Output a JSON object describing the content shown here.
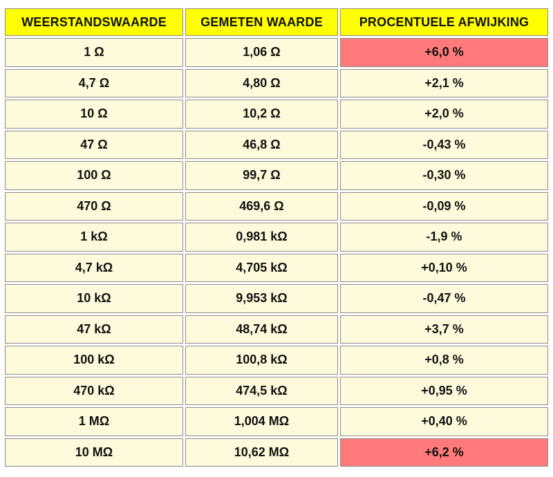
{
  "table": {
    "headers": [
      "WEERSTANDSWAARDE",
      "GEMETEN WAARDE",
      "PROCENTUELE AFWIJKING"
    ],
    "highlight_color": "#ff7a78",
    "header_color": "#ffff00",
    "cell_color": "#fffadc",
    "rows": [
      {
        "nominal": "1 Ω",
        "measured": "1,06 Ω",
        "deviation": "+6,0 %",
        "highlight": true
      },
      {
        "nominal": "4,7 Ω",
        "measured": "4,80 Ω",
        "deviation": "+2,1 %",
        "highlight": false
      },
      {
        "nominal": "10 Ω",
        "measured": "10,2 Ω",
        "deviation": "+2,0 %",
        "highlight": false
      },
      {
        "nominal": "47 Ω",
        "measured": "46,8 Ω",
        "deviation": "-0,43 %",
        "highlight": false
      },
      {
        "nominal": "100 Ω",
        "measured": "99,7 Ω",
        "deviation": "-0,30 %",
        "highlight": false
      },
      {
        "nominal": "470 Ω",
        "measured": "469,6 Ω",
        "deviation": "-0,09 %",
        "highlight": false
      },
      {
        "nominal": "1 kΩ",
        "measured": "0,981 kΩ",
        "deviation": "-1,9 %",
        "highlight": false
      },
      {
        "nominal": "4,7 kΩ",
        "measured": "4,705 kΩ",
        "deviation": "+0,10 %",
        "highlight": false
      },
      {
        "nominal": "10 kΩ",
        "measured": "9,953 kΩ",
        "deviation": "-0,47 %",
        "highlight": false
      },
      {
        "nominal": "47 kΩ",
        "measured": "48,74 kΩ",
        "deviation": "+3,7 %",
        "highlight": false
      },
      {
        "nominal": "100 kΩ",
        "measured": "100,8 kΩ",
        "deviation": "+0,8 %",
        "highlight": false
      },
      {
        "nominal": "470 kΩ",
        "measured": "474,5 kΩ",
        "deviation": "+0,95 %",
        "highlight": false
      },
      {
        "nominal": "1 MΩ",
        "measured": "1,004 MΩ",
        "deviation": "+0,40 %",
        "highlight": false
      },
      {
        "nominal": "10 MΩ",
        "measured": "10,62 MΩ",
        "deviation": "+6,2 %",
        "highlight": true
      }
    ]
  }
}
